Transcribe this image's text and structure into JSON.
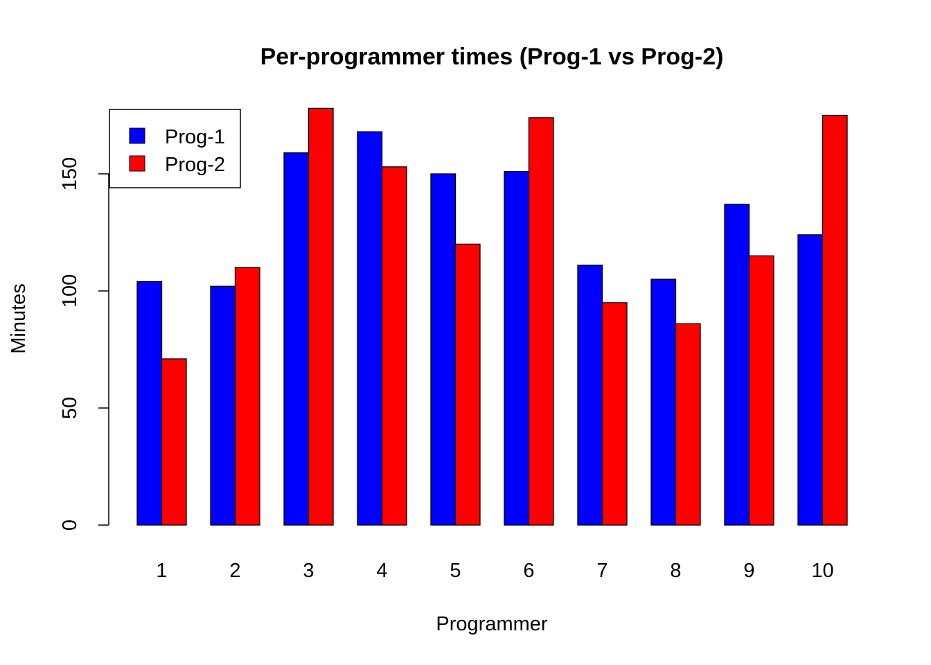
{
  "chart_data": {
    "type": "bar",
    "title": "Per-programmer times (Prog-1 vs Prog-2)",
    "xlabel": "Programmer",
    "ylabel": "Minutes",
    "categories": [
      "1",
      "2",
      "3",
      "4",
      "5",
      "6",
      "7",
      "8",
      "9",
      "10"
    ],
    "series": [
      {
        "name": "Prog-1",
        "color": "#0000ff",
        "values": [
          104,
          102,
          159,
          168,
          150,
          151,
          111,
          105,
          137,
          124
        ]
      },
      {
        "name": "Prog-2",
        "color": "#ff0000",
        "values": [
          71,
          110,
          178,
          153,
          120,
          174,
          95,
          86,
          115,
          175
        ]
      }
    ],
    "ylim": [
      0,
      178
    ],
    "yticks": [
      "0",
      "50",
      "100",
      "150"
    ],
    "grid": false,
    "legend_position": "top-left"
  }
}
